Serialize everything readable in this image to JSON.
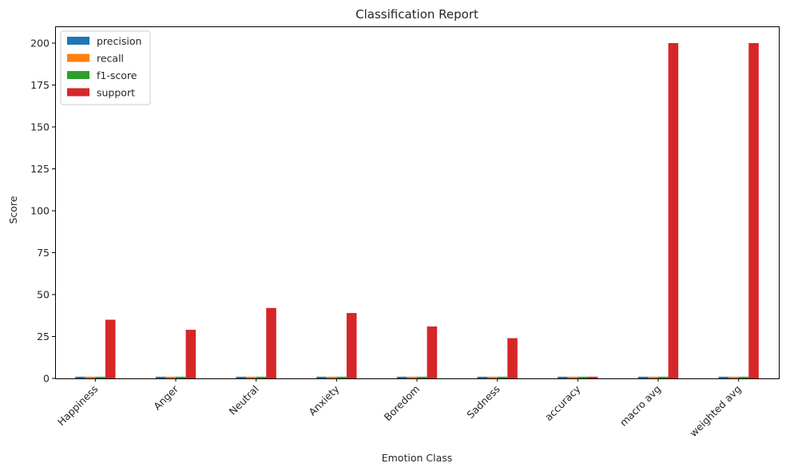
{
  "chart_data": {
    "type": "bar",
    "title": "Classification Report",
    "xlabel": "Emotion Class",
    "ylabel": "Score",
    "categories": [
      "Happiness",
      "Anger",
      "Neutral",
      "Anxiety",
      "Boredom",
      "Sadness",
      "accuracy",
      "macro avg",
      "weighted avg"
    ],
    "series": [
      {
        "name": "precision",
        "color": "#1f77b4",
        "values": [
          1,
          1,
          1,
          1,
          1,
          1,
          1,
          1,
          1
        ]
      },
      {
        "name": "recall",
        "color": "#ff7f0e",
        "values": [
          1,
          1,
          1,
          1,
          1,
          1,
          1,
          1,
          1
        ]
      },
      {
        "name": "f1-score",
        "color": "#2ca02c",
        "values": [
          1,
          1,
          1,
          1,
          1,
          1,
          1,
          1,
          1
        ]
      },
      {
        "name": "support",
        "color": "#d62728",
        "values": [
          35,
          29,
          42,
          39,
          31,
          24,
          1,
          200,
          200
        ]
      }
    ],
    "ylim": [
      0,
      210
    ],
    "yticks": [
      "0",
      "25",
      "50",
      "75",
      "100",
      "125",
      "150",
      "175",
      "200"
    ],
    "grid": false,
    "legend_position": "top-left"
  }
}
